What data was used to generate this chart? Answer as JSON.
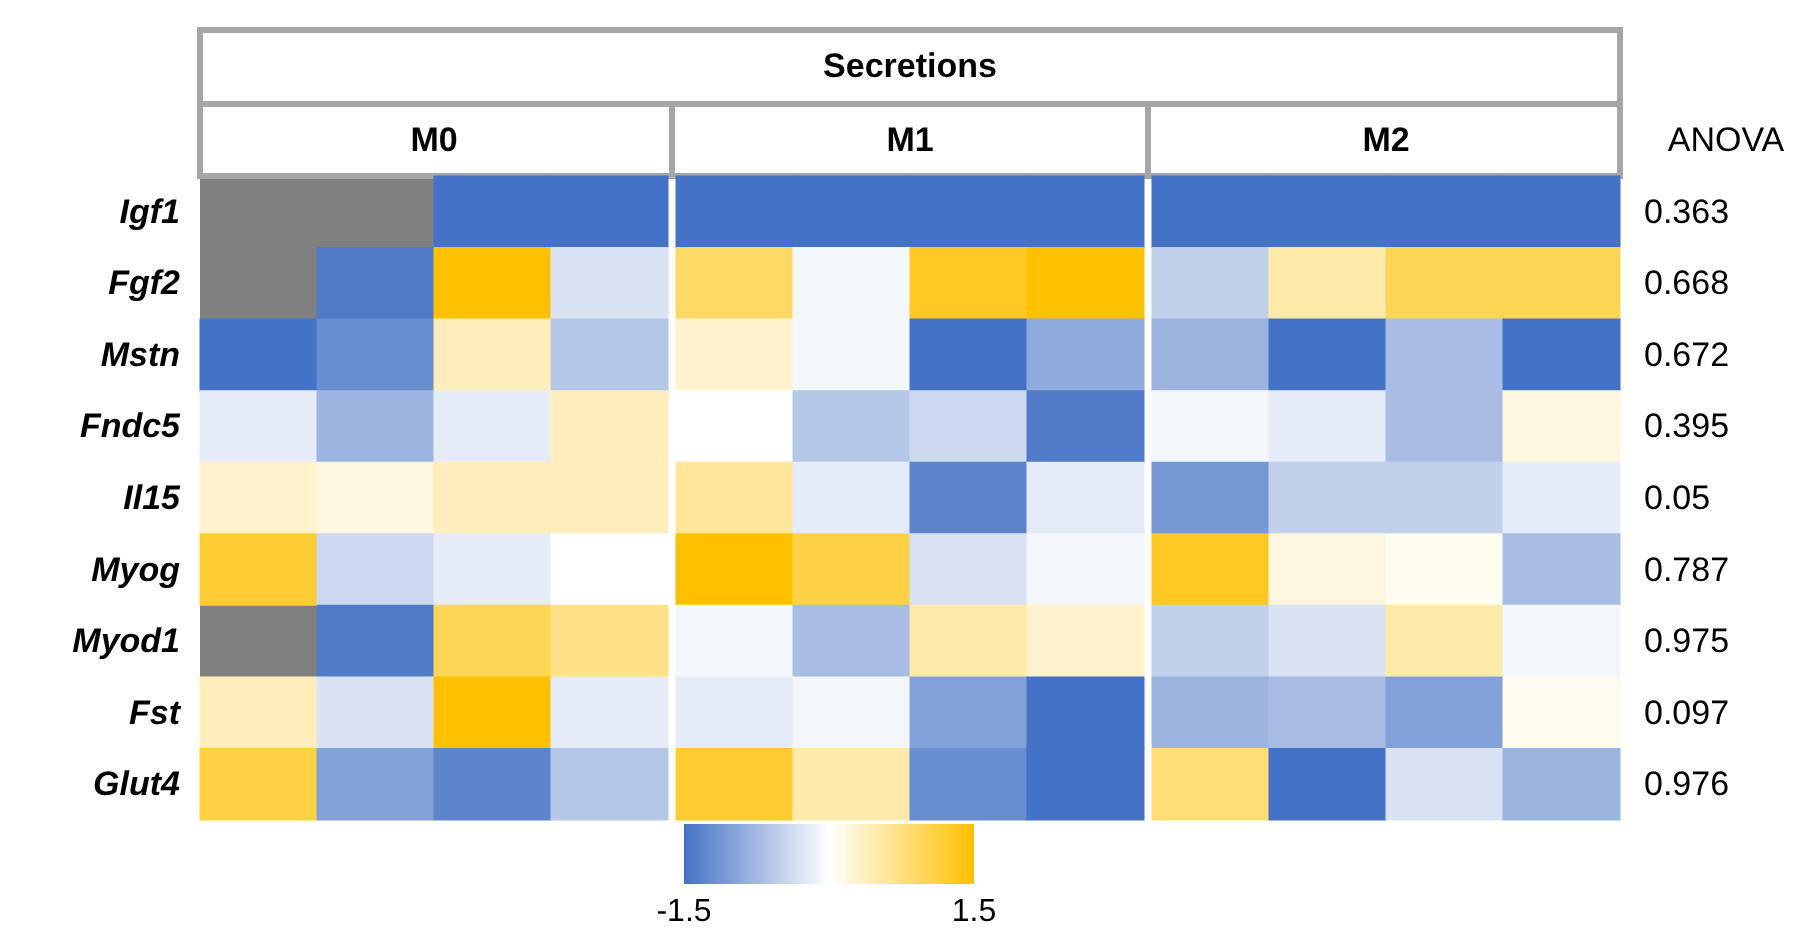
{
  "chart_data": {
    "type": "heatmap",
    "title": "Secretions",
    "annotations": [
      "M0",
      "M1",
      "M2"
    ],
    "y2label": "ANOVA",
    "categories": [
      null,
      null,
      null,
      null,
      null,
      null,
      null,
      null,
      null,
      null,
      null,
      null
    ],
    "y_categories": [
      "Igf1",
      "Fgf2",
      "Mstn",
      "Fndc5",
      "Il15",
      "Myog",
      "Myod1",
      "Fst",
      "Glut4"
    ],
    "y2_categories": [
      "0.363",
      "0.668",
      "0.672",
      "0.395",
      "0.05",
      "0.787",
      "0.975",
      "0.097",
      "0.976"
    ],
    "cells": [
      [
        null,
        null,
        -1.5,
        -1.5,
        -1.5,
        -1.5,
        -1.5,
        -1.5,
        -1.5,
        -1.5,
        -1.5,
        -1.5
      ],
      [
        null,
        -1.4,
        1.5,
        -0.3,
        0.9,
        -0.1,
        1.3,
        1.5,
        -0.5,
        0.5,
        1.0,
        1.0
      ],
      [
        -1.5,
        -1.2,
        0.4,
        -0.6,
        0.3,
        -0.1,
        -1.5,
        -0.9,
        -0.8,
        -1.5,
        -0.7,
        -1.5
      ],
      [
        -0.2,
        -0.8,
        -0.2,
        0.4,
        0,
        -0.6,
        -0.4,
        -1.4,
        -0.1,
        -0.2,
        -0.7,
        0.2
      ],
      [
        0.3,
        0.2,
        0.4,
        0.4,
        0.6,
        -0.2,
        -1.3,
        -0.2,
        -1.1,
        -0.5,
        -0.5,
        -0.2
      ],
      [
        1.2,
        -0.4,
        -0.2,
        0,
        1.5,
        1.1,
        -0.3,
        -0.1,
        1.3,
        0.2,
        0.1,
        -0.7
      ],
      [
        null,
        -1.4,
        1.0,
        0.7,
        -0.1,
        -0.7,
        0.5,
        0.3,
        -0.5,
        -0.3,
        0.5,
        -0.1
      ],
      [
        0.4,
        -0.3,
        1.5,
        -0.2,
        -0.2,
        -0.1,
        -1.0,
        -1.5,
        -0.8,
        -0.7,
        -1.0,
        0.1
      ],
      [
        1.1,
        -1.0,
        -1.3,
        -0.6,
        1.2,
        0.5,
        -1.2,
        -1.5,
        0.8,
        -1.5,
        -0.3,
        -0.8
      ]
    ],
    "clim": [
      -1.5,
      1.5
    ],
    "cticks": [
      -1.5,
      1.5
    ]
  }
}
